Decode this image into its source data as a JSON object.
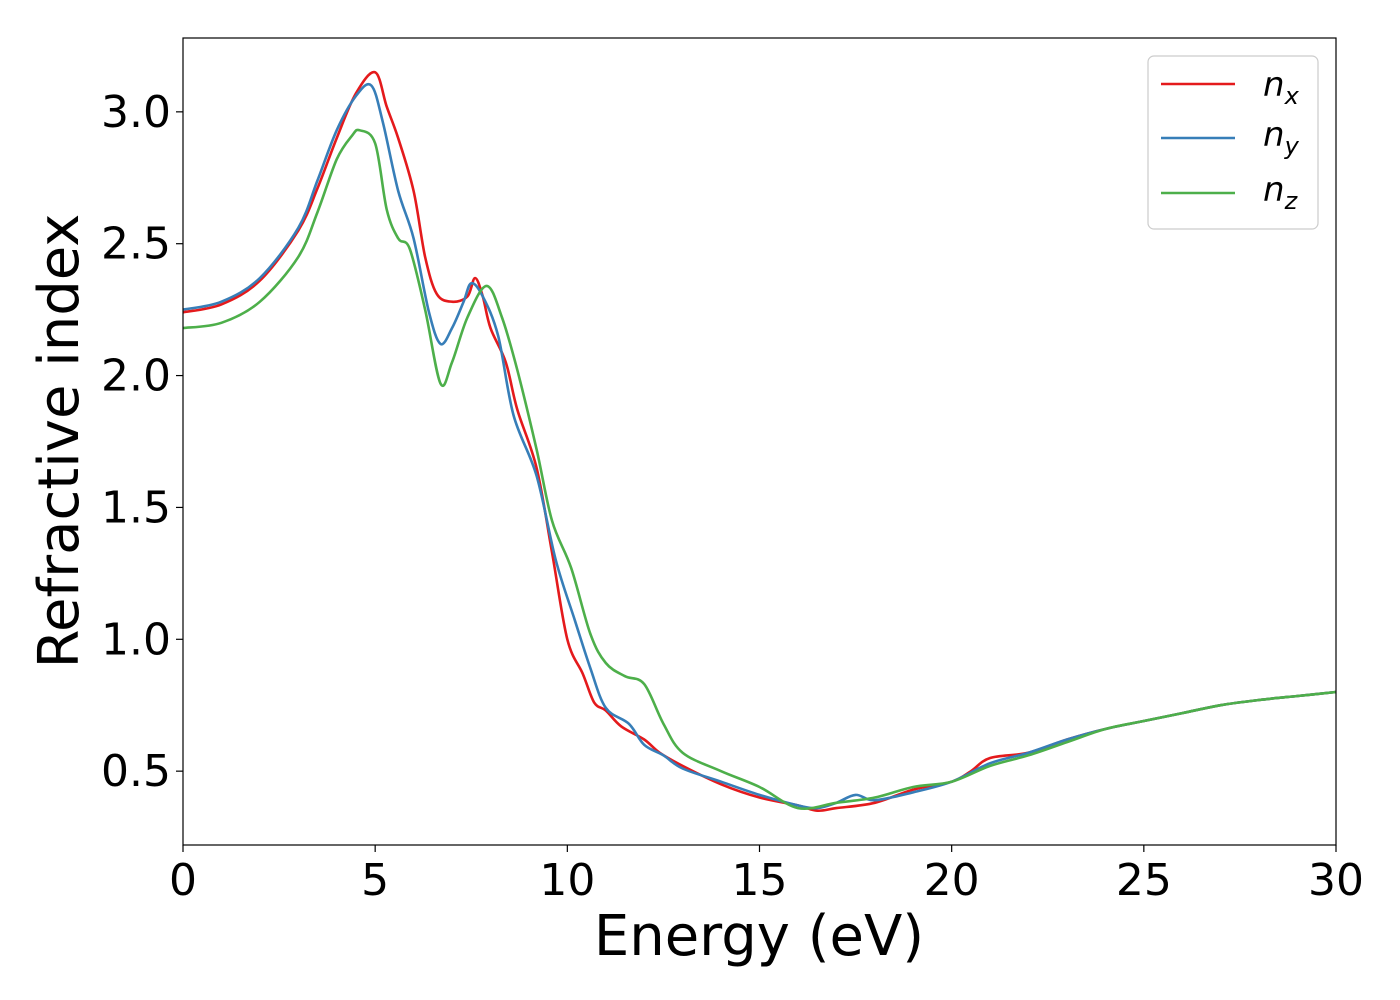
{
  "chart_data": {
    "type": "line",
    "title": "",
    "xlabel": "Energy (eV)",
    "ylabel": "Refractive index",
    "xlim": [
      0,
      30
    ],
    "ylim": [
      0.22,
      3.28
    ],
    "xticks": [
      0,
      5,
      10,
      15,
      20,
      25,
      30
    ],
    "xtick_labels": [
      "0",
      "5",
      "10",
      "15",
      "20",
      "25",
      "30"
    ],
    "yticks": [
      0.5,
      1.0,
      1.5,
      2.0,
      2.5,
      3.0
    ],
    "ytick_labels": [
      "0.5",
      "1.0",
      "1.5",
      "2.0",
      "2.5",
      "3.0"
    ],
    "grid": false,
    "legend_position": "top-right",
    "series": [
      {
        "name": "n_x",
        "label_main": "n",
        "label_sub": "x",
        "color": "#e41a1c",
        "points": [
          [
            0,
            2.24
          ],
          [
            1,
            2.27
          ],
          [
            2,
            2.36
          ],
          [
            3,
            2.55
          ],
          [
            3.5,
            2.71
          ],
          [
            4,
            2.9
          ],
          [
            4.5,
            3.07
          ],
          [
            5,
            3.15
          ],
          [
            5.3,
            3.02
          ],
          [
            5.6,
            2.9
          ],
          [
            6,
            2.7
          ],
          [
            6.3,
            2.45
          ],
          [
            6.6,
            2.31
          ],
          [
            7,
            2.28
          ],
          [
            7.4,
            2.3
          ],
          [
            7.6,
            2.37
          ],
          [
            7.8,
            2.3
          ],
          [
            8,
            2.18
          ],
          [
            8.4,
            2.05
          ],
          [
            8.7,
            1.87
          ],
          [
            9.2,
            1.65
          ],
          [
            9.6,
            1.33
          ],
          [
            10,
            1.0
          ],
          [
            10.4,
            0.87
          ],
          [
            10.7,
            0.76
          ],
          [
            11,
            0.73
          ],
          [
            11.4,
            0.67
          ],
          [
            12,
            0.62
          ],
          [
            12.4,
            0.57
          ],
          [
            13,
            0.52
          ],
          [
            14,
            0.45
          ],
          [
            15,
            0.4
          ],
          [
            16,
            0.37
          ],
          [
            16.5,
            0.35
          ],
          [
            17,
            0.36
          ],
          [
            18,
            0.38
          ],
          [
            19,
            0.43
          ],
          [
            20,
            0.46
          ],
          [
            20.5,
            0.5
          ],
          [
            21,
            0.55
          ],
          [
            22,
            0.57
          ],
          [
            23,
            0.62
          ],
          [
            24,
            0.66
          ],
          [
            25,
            0.69
          ],
          [
            26,
            0.72
          ],
          [
            27,
            0.75
          ],
          [
            28,
            0.77
          ],
          [
            29,
            0.785
          ],
          [
            30,
            0.8
          ]
        ]
      },
      {
        "name": "n_y",
        "label_main": "n",
        "label_sub": "y",
        "color": "#377eb8",
        "points": [
          [
            0,
            2.25
          ],
          [
            1,
            2.28
          ],
          [
            2,
            2.37
          ],
          [
            3,
            2.56
          ],
          [
            3.5,
            2.74
          ],
          [
            4,
            2.93
          ],
          [
            4.5,
            3.06
          ],
          [
            4.9,
            3.1
          ],
          [
            5.2,
            2.96
          ],
          [
            5.6,
            2.7
          ],
          [
            6,
            2.52
          ],
          [
            6.4,
            2.24
          ],
          [
            6.7,
            2.12
          ],
          [
            7,
            2.18
          ],
          [
            7.3,
            2.28
          ],
          [
            7.5,
            2.35
          ],
          [
            7.8,
            2.3
          ],
          [
            8.2,
            2.15
          ],
          [
            8.6,
            1.85
          ],
          [
            9.2,
            1.62
          ],
          [
            9.7,
            1.3
          ],
          [
            10.2,
            1.07
          ],
          [
            10.6,
            0.89
          ],
          [
            11,
            0.74
          ],
          [
            11.6,
            0.68
          ],
          [
            12,
            0.6
          ],
          [
            12.5,
            0.56
          ],
          [
            13,
            0.51
          ],
          [
            14,
            0.46
          ],
          [
            15,
            0.41
          ],
          [
            16,
            0.37
          ],
          [
            16.5,
            0.36
          ],
          [
            17,
            0.38
          ],
          [
            17.5,
            0.41
          ],
          [
            18,
            0.39
          ],
          [
            19,
            0.42
          ],
          [
            20,
            0.46
          ],
          [
            21,
            0.53
          ],
          [
            22,
            0.57
          ],
          [
            23,
            0.62
          ],
          [
            24,
            0.66
          ],
          [
            25,
            0.69
          ],
          [
            26,
            0.72
          ],
          [
            27,
            0.75
          ],
          [
            28,
            0.77
          ],
          [
            29,
            0.785
          ],
          [
            30,
            0.8
          ]
        ]
      },
      {
        "name": "n_z",
        "label_main": "n",
        "label_sub": "z",
        "color": "#4daf4a",
        "points": [
          [
            0,
            2.18
          ],
          [
            1,
            2.2
          ],
          [
            2,
            2.28
          ],
          [
            3,
            2.45
          ],
          [
            3.5,
            2.62
          ],
          [
            4,
            2.82
          ],
          [
            4.4,
            2.91
          ],
          [
            4.6,
            2.93
          ],
          [
            5,
            2.88
          ],
          [
            5.3,
            2.63
          ],
          [
            5.6,
            2.52
          ],
          [
            5.9,
            2.48
          ],
          [
            6.3,
            2.25
          ],
          [
            6.7,
            1.97
          ],
          [
            7,
            2.05
          ],
          [
            7.4,
            2.22
          ],
          [
            7.9,
            2.34
          ],
          [
            8.3,
            2.22
          ],
          [
            8.7,
            2.02
          ],
          [
            9.2,
            1.72
          ],
          [
            9.6,
            1.45
          ],
          [
            10.1,
            1.27
          ],
          [
            10.6,
            1.02
          ],
          [
            11,
            0.91
          ],
          [
            11.5,
            0.86
          ],
          [
            12,
            0.83
          ],
          [
            12.5,
            0.68
          ],
          [
            13,
            0.57
          ],
          [
            14,
            0.5
          ],
          [
            15,
            0.44
          ],
          [
            16,
            0.36
          ],
          [
            17,
            0.38
          ],
          [
            18,
            0.4
          ],
          [
            19,
            0.44
          ],
          [
            20,
            0.46
          ],
          [
            21,
            0.52
          ],
          [
            22,
            0.56
          ],
          [
            23,
            0.61
          ],
          [
            24,
            0.66
          ],
          [
            25,
            0.69
          ],
          [
            26,
            0.72
          ],
          [
            27,
            0.75
          ],
          [
            28,
            0.77
          ],
          [
            29,
            0.785
          ],
          [
            30,
            0.8
          ]
        ]
      }
    ]
  }
}
